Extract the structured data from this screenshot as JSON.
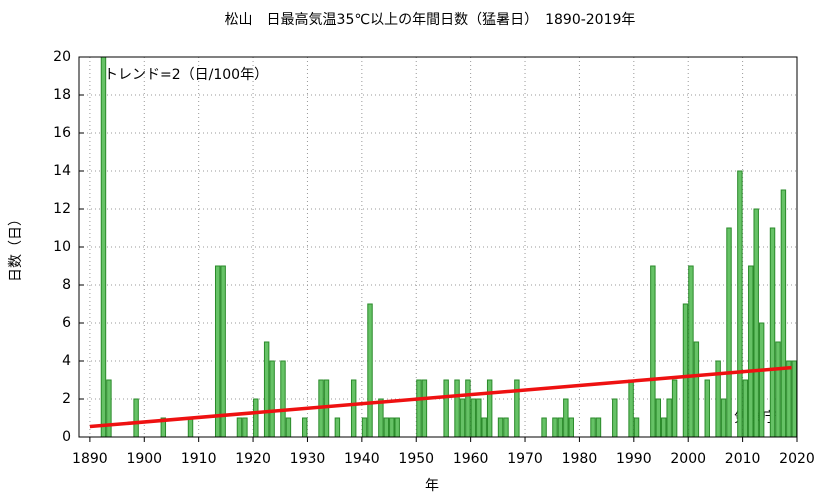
{
  "chart_data": {
    "type": "bar",
    "title": "松山　日最高気温35℃以上の年間日数（猛暑日）　1890-2019年",
    "ylabel": "日数（日）",
    "xlabel": "年",
    "annotation": "トレンド=2（日/100年）",
    "source": "気象庁",
    "x": [
      1890,
      1891,
      1892,
      1893,
      1894,
      1895,
      1896,
      1897,
      1898,
      1899,
      1900,
      1901,
      1902,
      1903,
      1904,
      1905,
      1906,
      1907,
      1908,
      1909,
      1910,
      1911,
      1912,
      1913,
      1914,
      1915,
      1916,
      1917,
      1918,
      1919,
      1920,
      1921,
      1922,
      1923,
      1924,
      1925,
      1926,
      1927,
      1928,
      1929,
      1930,
      1931,
      1932,
      1933,
      1934,
      1935,
      1936,
      1937,
      1938,
      1939,
      1940,
      1941,
      1942,
      1943,
      1944,
      1945,
      1946,
      1947,
      1948,
      1949,
      1950,
      1951,
      1952,
      1953,
      1954,
      1955,
      1956,
      1957,
      1958,
      1959,
      1960,
      1961,
      1962,
      1963,
      1964,
      1965,
      1966,
      1967,
      1968,
      1969,
      1970,
      1971,
      1972,
      1973,
      1974,
      1975,
      1976,
      1977,
      1978,
      1979,
      1980,
      1981,
      1982,
      1983,
      1984,
      1985,
      1986,
      1987,
      1988,
      1989,
      1990,
      1991,
      1992,
      1993,
      1994,
      1995,
      1996,
      1997,
      1998,
      1999,
      2000,
      2001,
      2002,
      2003,
      2004,
      2005,
      2006,
      2007,
      2008,
      2009,
      2010,
      2011,
      2012,
      2013,
      2014,
      2015,
      2016,
      2017,
      2018,
      2019
    ],
    "values": [
      0,
      0,
      20,
      3,
      0,
      0,
      0,
      0,
      2,
      0,
      0,
      0,
      0,
      1,
      0,
      0,
      0,
      0,
      1,
      0,
      0,
      0,
      0,
      9,
      9,
      0,
      0,
      1,
      1,
      0,
      2,
      0,
      5,
      4,
      0,
      4,
      1,
      0,
      0,
      1,
      0,
      0,
      3,
      3,
      0,
      1,
      0,
      0,
      3,
      0,
      1,
      7,
      0,
      2,
      1,
      1,
      1,
      0,
      0,
      0,
      3,
      3,
      0,
      0,
      0,
      3,
      0,
      3,
      2,
      3,
      2,
      2,
      1,
      3,
      0,
      1,
      1,
      0,
      3,
      0,
      0,
      0,
      0,
      1,
      0,
      1,
      1,
      2,
      1,
      0,
      0,
      0,
      1,
      1,
      0,
      0,
      2,
      0,
      0,
      3,
      1,
      0,
      0,
      9,
      2,
      1,
      2,
      3,
      0,
      7,
      9,
      5,
      0,
      3,
      0,
      4,
      2,
      11,
      0,
      14,
      3,
      9,
      12,
      6,
      0,
      11,
      5,
      13,
      4,
      4
    ],
    "color": "#66c266",
    "edgecolor": "#2a8a2a",
    "trend": {
      "x": [
        1890,
        2019
      ],
      "values": [
        0.55,
        3.65
      ],
      "color": "#ee1111"
    },
    "xlim": [
      1888,
      2020
    ],
    "xticks": [
      1890,
      1900,
      1910,
      1920,
      1930,
      1940,
      1950,
      1960,
      1970,
      1980,
      1990,
      2000,
      2010,
      2020
    ],
    "ylim": [
      0,
      20
    ],
    "yticks": [
      0,
      2,
      4,
      6,
      8,
      10,
      12,
      14,
      16,
      18,
      20
    ],
    "grid": true
  }
}
